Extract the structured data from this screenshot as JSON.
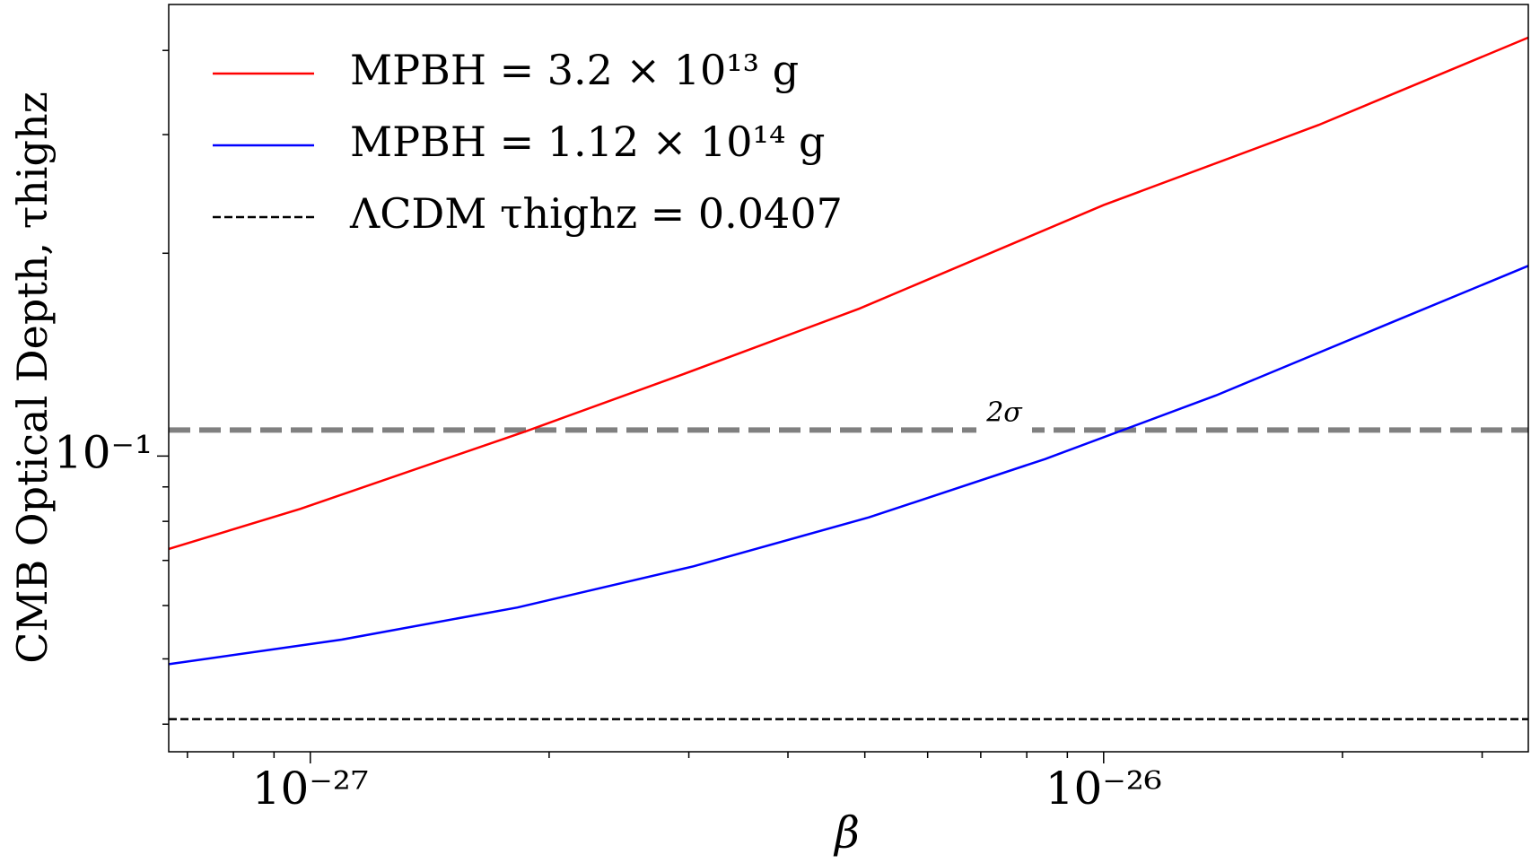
{
  "chart_data": {
    "type": "line",
    "x_label": "β",
    "y_label": "CMB Optical Depth, τhighz",
    "xscale": "log",
    "yscale": "log",
    "xlim": [
      6.63e-28,
      3.43e-26
    ],
    "ylim": [
      0.0364,
      0.468
    ],
    "xticks": [
      {
        "value": 1e-27,
        "label": "10⁻²⁷"
      },
      {
        "value": 1e-26,
        "label": "10⁻²⁶"
      }
    ],
    "yticks": [
      {
        "value": 0.1,
        "label": "10⁻¹"
      }
    ],
    "xminorticks": [
      7e-28,
      8e-28,
      9e-28,
      2e-27,
      3e-27,
      4e-27,
      5e-27,
      6e-27,
      7e-27,
      8e-27,
      9e-27,
      2e-26,
      3e-26
    ],
    "yminorticks": [
      0.04,
      0.05,
      0.06,
      0.07,
      0.08,
      0.09,
      0.2,
      0.3,
      0.4
    ],
    "legend": "upper left",
    "series": [
      {
        "name": "MPBH = 3.2 × 10¹³ g",
        "color": "#ff0000",
        "x": [
          6.63e-28,
          9.72e-28,
          1.876e-27,
          2.953e-27,
          4.92e-27,
          1e-26,
          1.866e-26,
          3.43e-26
        ],
        "values": [
          0.0728,
          0.0835,
          0.109,
          0.1323,
          0.1655,
          0.2358,
          0.31,
          0.418
        ]
      },
      {
        "name": "MPBH = 1.12 × 10¹⁴ g",
        "color": "#0000ff",
        "x": [
          6.63e-28,
          1.095e-27,
          1.824e-27,
          3.04e-27,
          5.06e-27,
          8.44e-27,
          1.385e-26,
          2.31e-26,
          3.43e-26
        ],
        "values": [
          0.0491,
          0.0534,
          0.0596,
          0.0686,
          0.0811,
          0.099,
          0.123,
          0.158,
          0.1916
        ]
      },
      {
        "name": "ΛCDM τhighz = 0.0407",
        "color": "#000000",
        "style": "dashed",
        "hline": 0.0407
      }
    ],
    "reference_line": {
      "value": 0.1093,
      "label": "2σ",
      "color": "#808080"
    }
  }
}
